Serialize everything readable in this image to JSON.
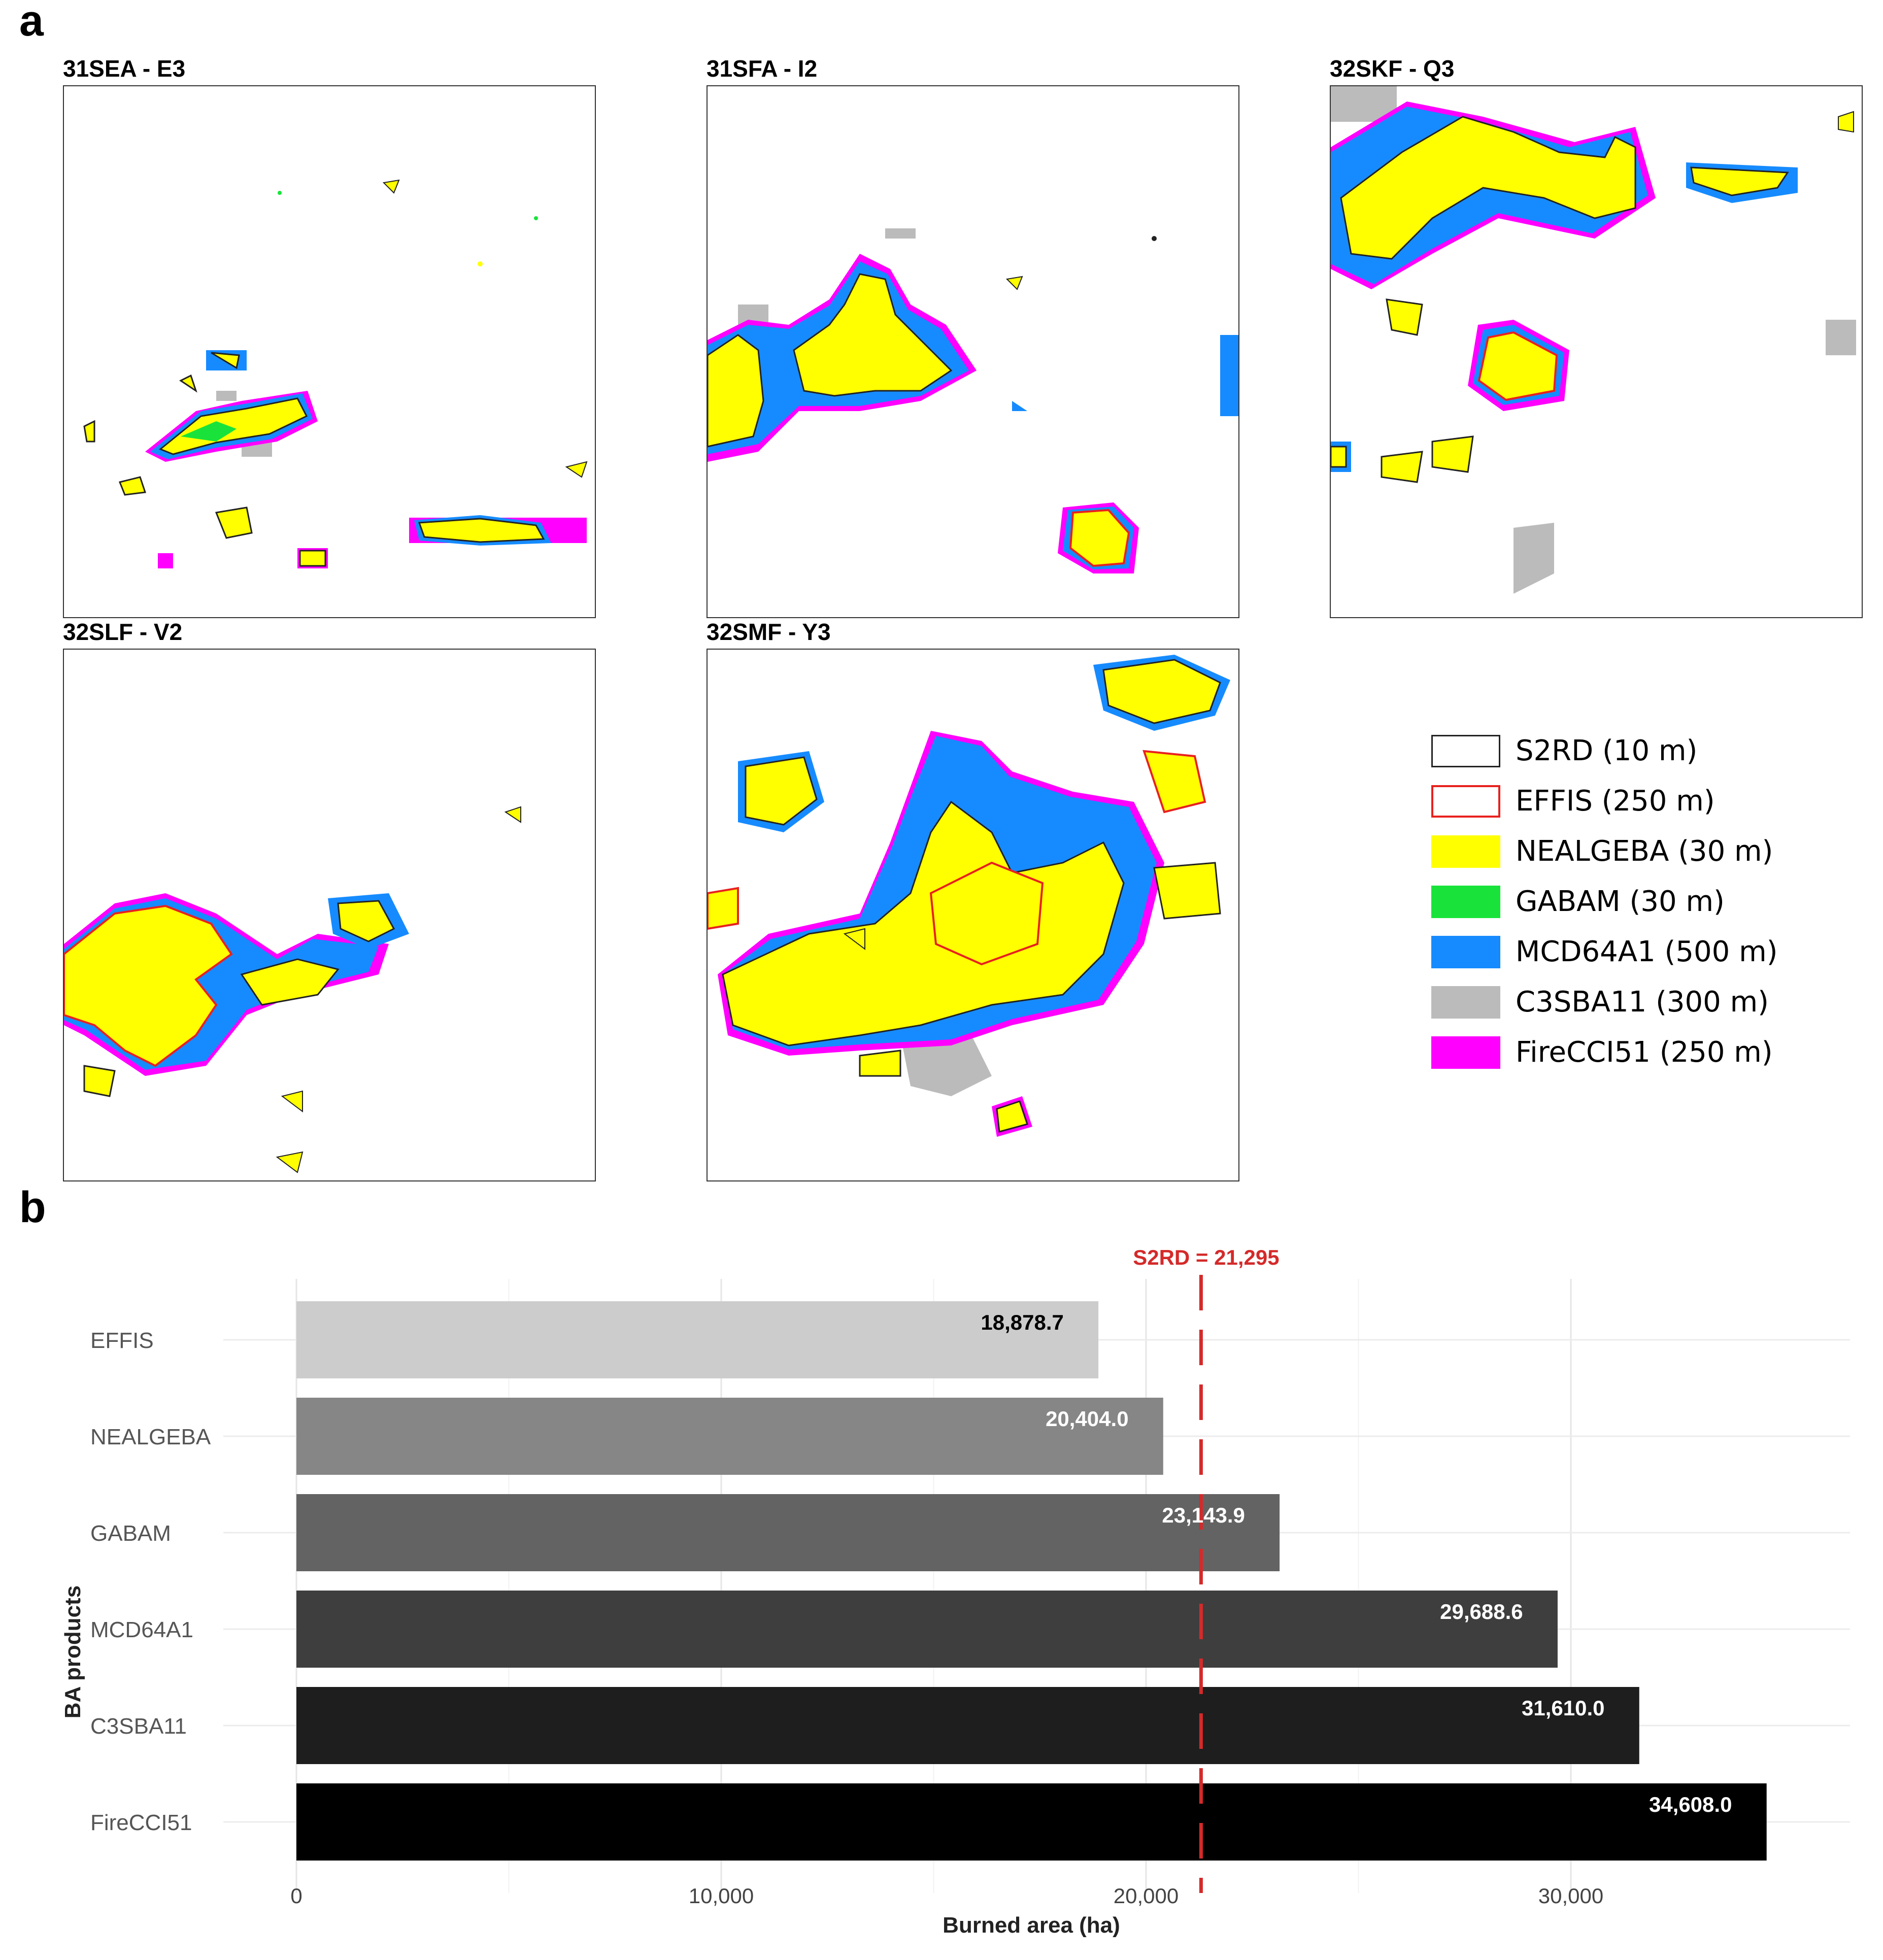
{
  "panel_a": {
    "letter": "a",
    "maps": [
      {
        "id": "31SEA - E3"
      },
      {
        "id": "31SFA - I2"
      },
      {
        "id": "32SKF - Q3"
      },
      {
        "id": "32SLF - V2"
      },
      {
        "id": "32SMF - Y3"
      }
    ],
    "legend": [
      {
        "label": "S2RD (10 m)",
        "fill": "#ffffff",
        "border": "#222222"
      },
      {
        "label": "EFFIS (250 m)",
        "fill": "#ffffff",
        "border": "#e8211f"
      },
      {
        "label": "NEALGEBA (30 m)",
        "fill": "#ffff00",
        "border": "#ffff00"
      },
      {
        "label": "GABAM (30 m)",
        "fill": "#19e33a",
        "border": "#19e33a"
      },
      {
        "label": "MCD64A1 (500 m)",
        "fill": "#168bff",
        "border": "#168bff"
      },
      {
        "label": "C3SBA11 (300 m)",
        "fill": "#bbbbbb",
        "border": "#bbbbbb"
      },
      {
        "label": "FireCCI51 (250 m)",
        "fill": "#ff00ff",
        "border": "#ff00ff"
      }
    ]
  },
  "panel_b": {
    "letter": "b"
  },
  "chart_data": {
    "type": "bar",
    "orientation": "horizontal",
    "categories": [
      "EFFIS",
      "NEALGEBA",
      "GABAM",
      "MCD64A1",
      "C3SBA11",
      "FireCCI51"
    ],
    "values": [
      18878.7,
      20404.0,
      23143.9,
      29688.6,
      31610.0,
      34608.0
    ],
    "value_labels": [
      "18,878.7",
      "20,404.0",
      "23,143.9",
      "29,688.6",
      "31,610.0",
      "34,608.0"
    ],
    "bar_colors": [
      "#cccccc",
      "#868686",
      "#636363",
      "#3e3e3e",
      "#1e1e1e",
      "#000000"
    ],
    "label_colors": [
      "#000000",
      "#ffffff",
      "#ffffff",
      "#ffffff",
      "#ffffff",
      "#ffffff"
    ],
    "xlabel": "Burned area (ha)",
    "ylabel": "BA products",
    "xticks": [
      0,
      10000,
      20000,
      30000
    ],
    "xtick_labels": [
      "0",
      "10,000",
      "20,000",
      "30,000"
    ],
    "xlim": [
      0,
      36500
    ],
    "reference_line": {
      "value": 21295,
      "label": "S2RD = 21,295",
      "color": "#d42a2a"
    },
    "grid": true
  }
}
